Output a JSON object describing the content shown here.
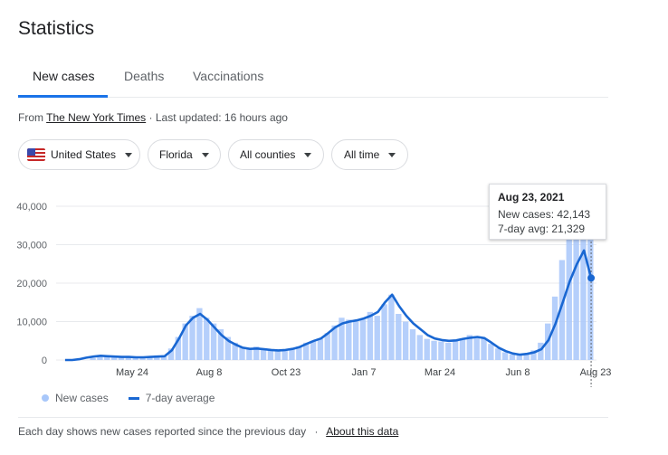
{
  "page": {
    "title": "Statistics"
  },
  "tabs": [
    {
      "label": "New cases",
      "active": true
    },
    {
      "label": "Deaths",
      "active": false
    },
    {
      "label": "Vaccinations",
      "active": false
    }
  ],
  "source": {
    "prefix": "From",
    "name": "The New York Times",
    "updated": "· Last updated: 16 hours ago"
  },
  "filters": {
    "country": "United States",
    "state": "Florida",
    "county": "All counties",
    "time": "All time"
  },
  "tooltip": {
    "date": "Aug 23, 2021",
    "cases": "New cases: 42,143",
    "avg": "7-day avg: 21,329"
  },
  "legend": {
    "bars": "New cases",
    "line": "7-day average"
  },
  "footer": {
    "text": "Each day shows new cases reported since the previous day",
    "separator": "·",
    "link": "About this data"
  },
  "colors": {
    "bars": "#a8c7fa",
    "line": "#1967d2",
    "accent": "#1a73e8",
    "grid": "#e8eaed"
  },
  "icons": {
    "flag": "us-flag-icon",
    "dropdown": "caret-down-icon"
  },
  "chart_data": {
    "type": "bar",
    "xlabel": "",
    "ylabel": "",
    "ylim": [
      0,
      40000
    ],
    "yticks": [
      "40,000",
      "30,000",
      "20,000",
      "10,000",
      "0"
    ],
    "yticks_values": [
      40000,
      30000,
      20000,
      10000,
      0
    ],
    "xticks": [
      "May 24",
      "Aug 8",
      "Oct 23",
      "Jan 7",
      "Mar 24",
      "Jun 8",
      "Aug 23"
    ],
    "series": [
      {
        "name": "New cases",
        "kind": "bar",
        "values": [
          0,
          0,
          0,
          0,
          500,
          800,
          1200,
          1000,
          700,
          900,
          600,
          800,
          900,
          1200,
          1000,
          3000,
          6000,
          9500,
          11500,
          13500,
          11000,
          9500,
          8000,
          6000,
          4500,
          3200,
          2800,
          3500,
          3000,
          2500,
          2400,
          2600,
          3000,
          3500,
          4500,
          5000,
          5500,
          7000,
          9000,
          11000,
          10500,
          10000,
          10500,
          12500,
          11500,
          14500,
          17000,
          12000,
          10000,
          8000,
          6500,
          5500,
          5000,
          4800,
          4500,
          5000,
          5500,
          6500,
          6000,
          5500,
          4200,
          3000,
          2000,
          1500,
          1200,
          1500,
          2500,
          4500,
          9500,
          16500,
          26000,
          33000,
          37000,
          40000,
          42143
        ]
      },
      {
        "name": "7-day average",
        "kind": "line",
        "values": [
          0,
          0,
          200,
          600,
          900,
          1100,
          1000,
          900,
          800,
          800,
          700,
          700,
          800,
          900,
          1000,
          2500,
          5500,
          9000,
          11000,
          12000,
          10500,
          8500,
          6500,
          5000,
          4000,
          3200,
          2900,
          3000,
          2800,
          2600,
          2500,
          2600,
          2900,
          3400,
          4200,
          5000,
          5600,
          7000,
          8500,
          9500,
          10000,
          10300,
          10800,
          11500,
          12500,
          15000,
          17000,
          14000,
          11500,
          9500,
          8000,
          6500,
          5600,
          5200,
          5000,
          5100,
          5500,
          5800,
          6000,
          5700,
          4500,
          3200,
          2300,
          1700,
          1400,
          1600,
          2000,
          2800,
          5200,
          9500,
          15000,
          20500,
          25000,
          28500,
          21329
        ]
      }
    ],
    "highlight": {
      "date": "Aug 23, 2021",
      "new_cases": 42143,
      "avg": 21329
    },
    "legend_position": "bottom-left",
    "grid": "horizontal"
  }
}
